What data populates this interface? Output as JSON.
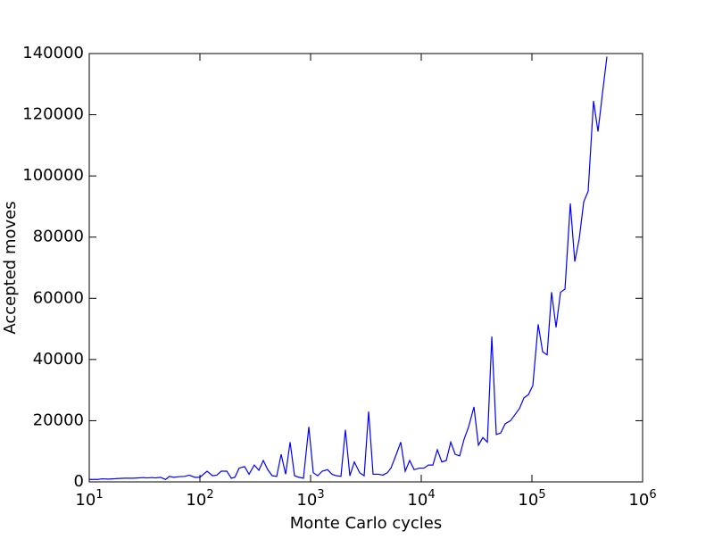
{
  "chart_data": {
    "type": "line",
    "x_label": "Monte Carlo cycles",
    "y_label": "Accepted moves",
    "x_scale": "log",
    "color": "#0000ff",
    "xlim": [
      10,
      1000000
    ],
    "xticks": [
      {
        "value": 10,
        "label": "10^1"
      },
      {
        "value": 100,
        "label": "10^2"
      },
      {
        "value": 1000,
        "label": "10^3"
      },
      {
        "value": 10000,
        "label": "10^4"
      },
      {
        "value": 100000,
        "label": "10^5"
      },
      {
        "value": 1000000,
        "label": "10^6"
      }
    ],
    "ylim": [
      0,
      140000
    ],
    "yticks": [
      0,
      20000,
      40000,
      60000,
      80000,
      100000,
      120000,
      140000
    ],
    "x": [
      10,
      12,
      13,
      15,
      18,
      21,
      25,
      31,
      33,
      37,
      40,
      44,
      49,
      53,
      58,
      64,
      73,
      80,
      90,
      100,
      116,
      130,
      142,
      156,
      175,
      192,
      207,
      226,
      253,
      278,
      310,
      341,
      374,
      410,
      450,
      494,
      542,
      595,
      653,
      716,
      786,
      862,
      964,
      1057,
      1160,
      1273,
      1423,
      1562,
      1714,
      1880,
      2063,
      2264,
      2484,
      2778,
      3048,
      3345,
      3670,
      4103,
      4502,
      4940,
      5321,
      5949,
      6528,
      7163,
      7860,
      8625,
      9643,
      10580,
      11610,
      12740,
      13980,
      15340,
      16830,
      18470,
      20270,
      22240,
      24400,
      26780,
      29940,
      32850,
      36050,
      39560,
      43410,
      47630,
      52260,
      57350,
      64110,
      70350,
      77200,
      84710,
      92950,
      101900,
      113900,
      125000,
      137200,
      150500,
      165200,
      181300,
      198900,
      222300,
      243900,
      267700,
      293700,
      322300,
      360300,
      395400,
      433900,
      476100
    ],
    "y": [
      800,
      800,
      1000,
      900,
      1100,
      1200,
      1200,
      1400,
      1300,
      1400,
      1300,
      1500,
      800,
      1800,
      1500,
      1700,
      1800,
      2200,
      1500,
      1500,
      3500,
      2000,
      2200,
      3500,
      3500,
      1200,
      1500,
      4500,
      5000,
      2500,
      5500,
      3800,
      7000,
      4000,
      2000,
      1800,
      9000,
      2500,
      13000,
      2000,
      1500,
      1200,
      18000,
      3000,
      2000,
      3500,
      4000,
      2500,
      2000,
      1800,
      17000,
      2000,
      6500,
      3000,
      2000,
      23000,
      2500,
      2500,
      2200,
      3000,
      4500,
      9000,
      13000,
      3500,
      7000,
      4000,
      4500,
      4500,
      5500,
      5500,
      10500,
      6500,
      7000,
      13000,
      9000,
      8500,
      14000,
      18000,
      24500,
      12000,
      14500,
      13000,
      47500,
      15500,
      16000,
      19000,
      20000,
      22000,
      24000,
      27500,
      28500,
      31500,
      51500,
      42500,
      41500,
      62000,
      50500,
      62000,
      63000,
      91000,
      72000,
      79500,
      91500,
      95000,
      124500,
      114500,
      127000,
      139000
    ]
  }
}
